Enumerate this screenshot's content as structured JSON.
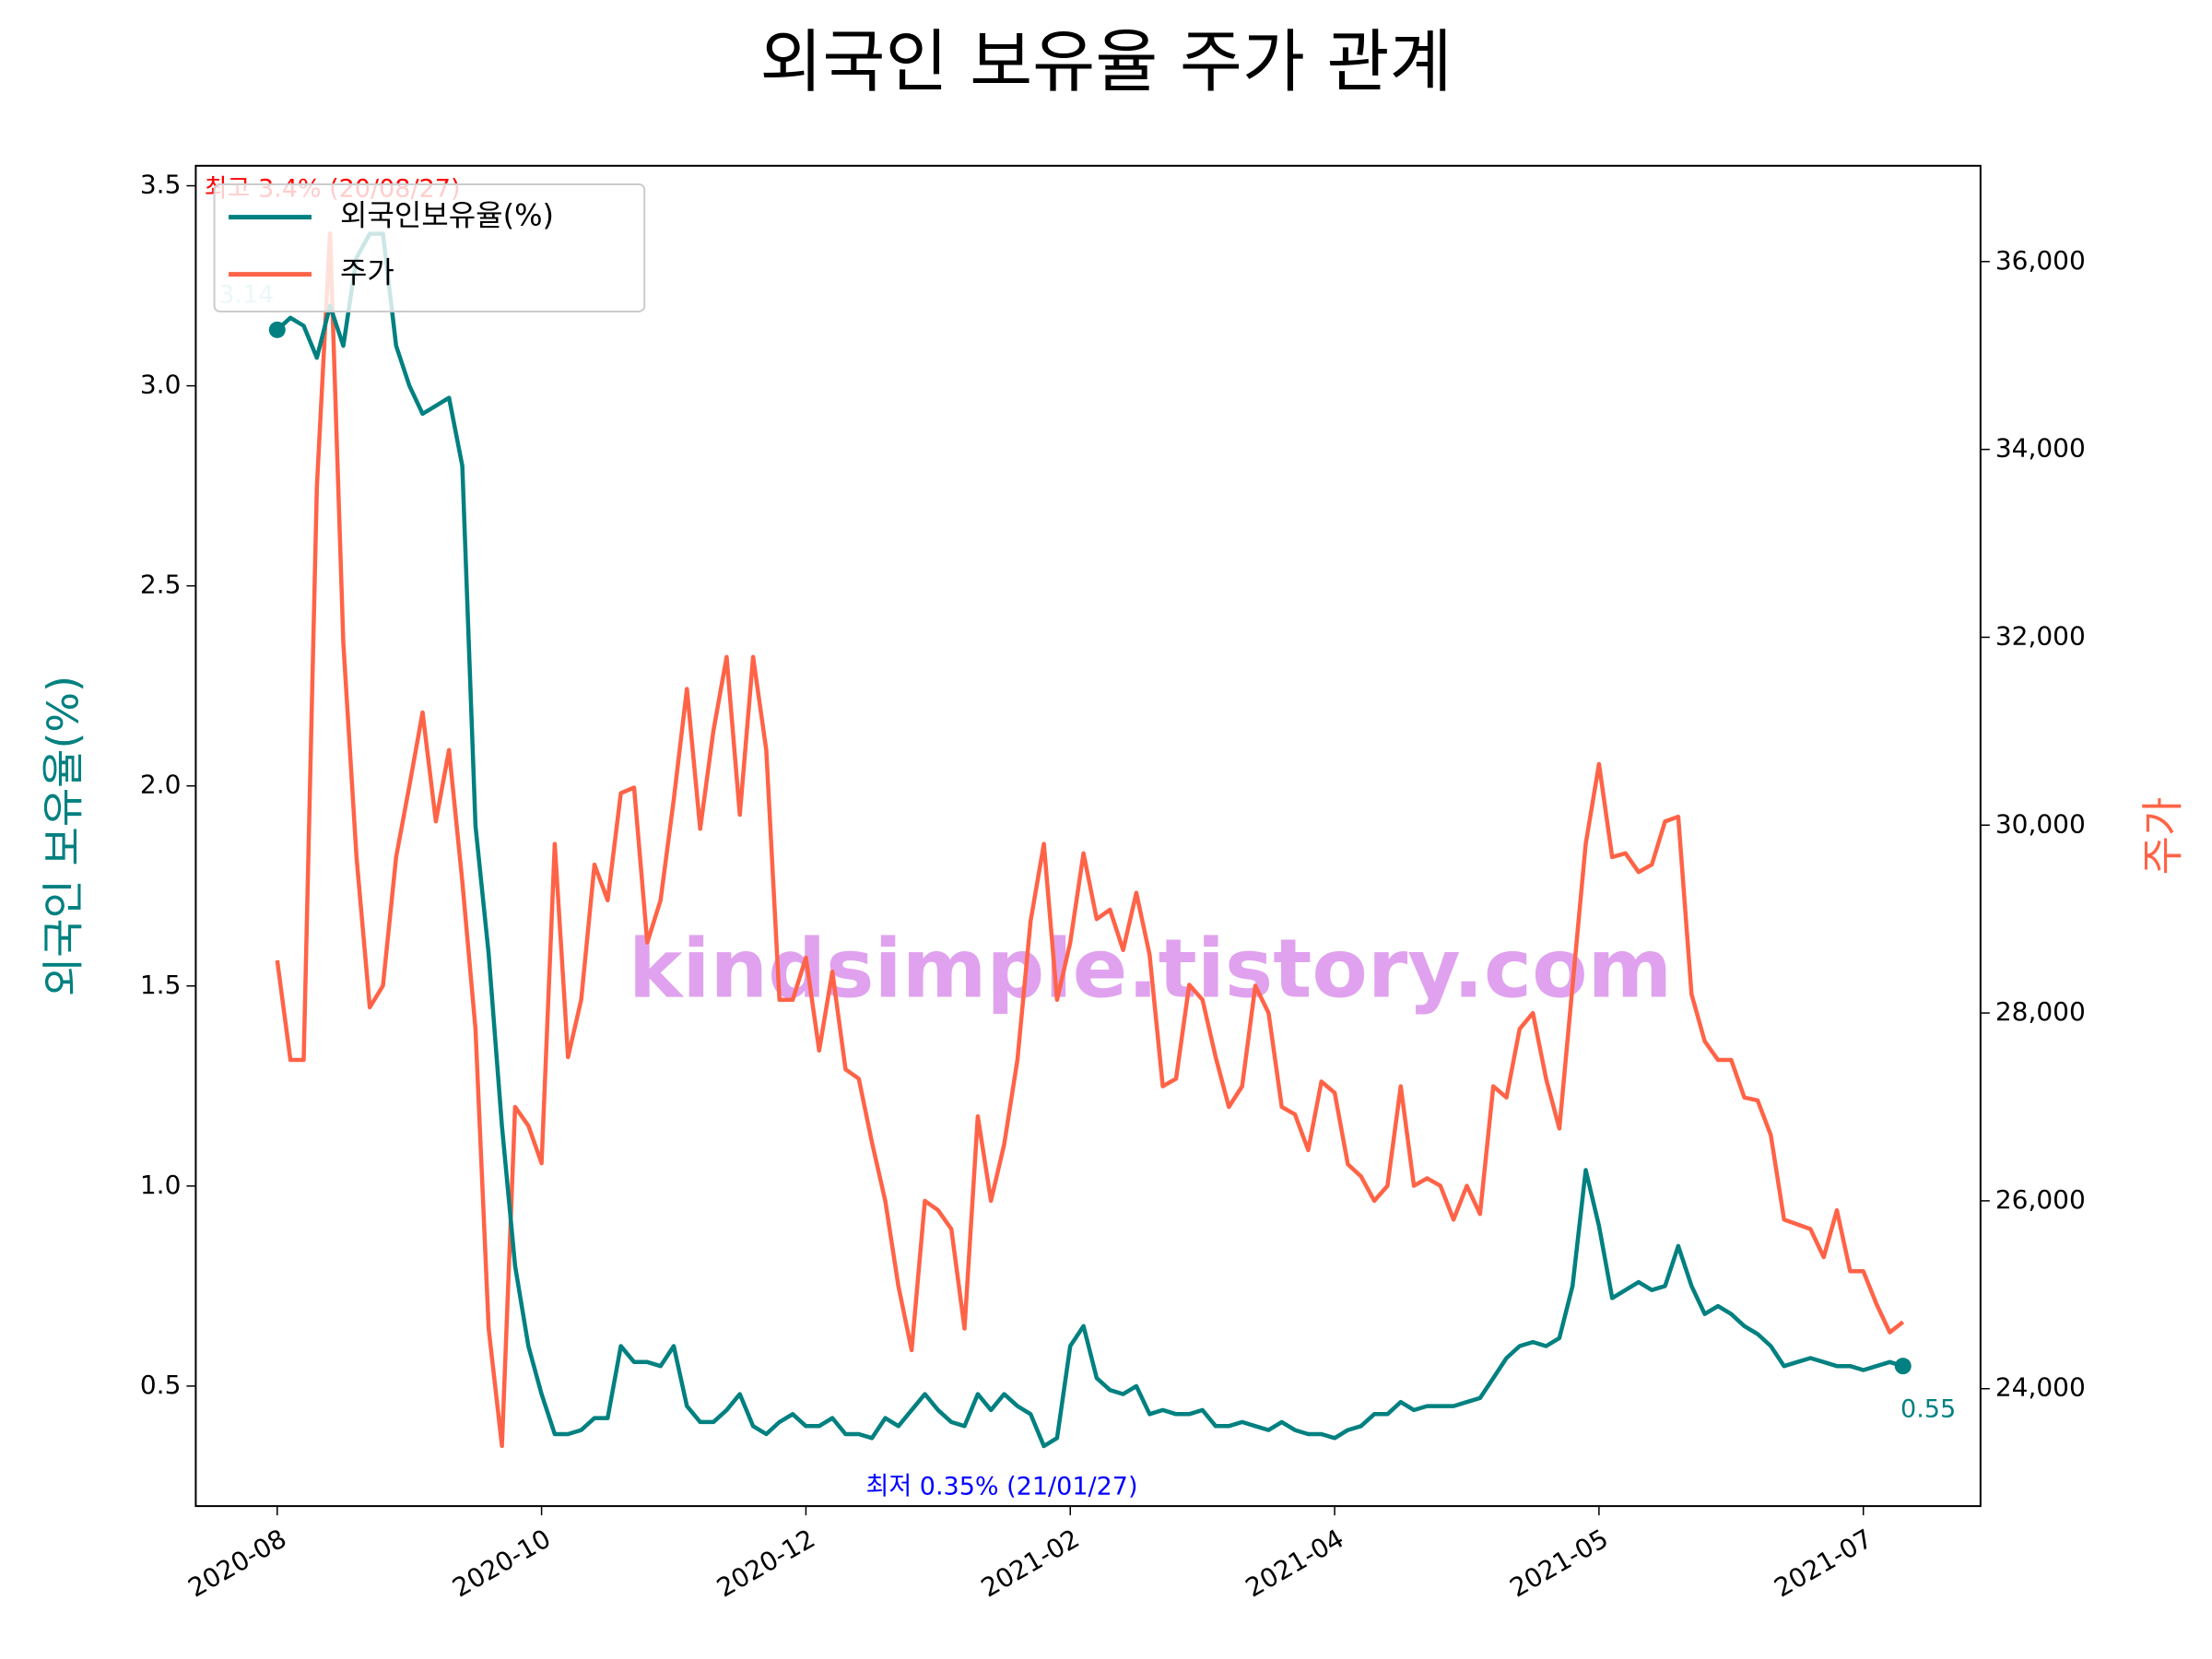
{
  "chart_data": {
    "type": "line",
    "title": "외국인 보유율 주가 관계",
    "ylabel": "외국인 보유율(%)",
    "y2label": "주가",
    "watermark": "kindsimple.tistory.com",
    "legend": "upper left",
    "categories": [
      "2020-08",
      null,
      null,
      null,
      null,
      null,
      null,
      null,
      null,
      null,
      null,
      null,
      null,
      null,
      null,
      null,
      null,
      null,
      null,
      null,
      "2020-10",
      null,
      null,
      null,
      null,
      null,
      null,
      null,
      null,
      null,
      null,
      null,
      null,
      null,
      null,
      null,
      null,
      null,
      null,
      null,
      "2020-12",
      null,
      null,
      null,
      null,
      null,
      null,
      null,
      null,
      null,
      null,
      null,
      null,
      null,
      null,
      null,
      null,
      null,
      null,
      null,
      "2021-02",
      null,
      null,
      null,
      null,
      null,
      null,
      null,
      null,
      null,
      null,
      null,
      null,
      null,
      null,
      null,
      null,
      null,
      null,
      null,
      "2021-04",
      null,
      null,
      null,
      null,
      null,
      null,
      null,
      null,
      null,
      null,
      null,
      null,
      null,
      null,
      null,
      null,
      null,
      null,
      null,
      "2021-05",
      null,
      null,
      null,
      null,
      null,
      null,
      null,
      null,
      null,
      null,
      null,
      null,
      null,
      null,
      null,
      null,
      null,
      null,
      null,
      "2021-07",
      null,
      null,
      null
    ],
    "ylim": [
      0.2,
      3.55
    ],
    "yticks": [
      0.5,
      {
        "value": 1,
        "label": "1.0"
      },
      1.5,
      {
        "value": 2,
        "label": "2.0"
      },
      2.5,
      {
        "value": 3,
        "label": "3.0"
      },
      3.5
    ],
    "y2lim": [
      22750,
      37020
    ],
    "y2ticks": [
      {
        "value": 24000,
        "label": "24,000"
      },
      {
        "value": 26000,
        "label": "26,000"
      },
      {
        "value": 28000,
        "label": "28,000"
      },
      {
        "value": 30000,
        "label": "30,000"
      },
      {
        "value": 32000,
        "label": "32,000"
      },
      {
        "value": 34000,
        "label": "34,000"
      },
      {
        "value": 36000,
        "label": "36,000"
      }
    ],
    "series": [
      {
        "name": "외국인보유율(%)",
        "color": "#008080",
        "values": [
          3.14,
          3.17,
          3.15,
          3.07,
          3.2,
          3.1,
          3.32,
          3.38,
          3.38,
          3.1,
          3.0,
          2.93,
          2.95,
          2.97,
          2.8,
          1.9,
          1.58,
          1.15,
          0.8,
          0.6,
          0.48,
          0.38,
          0.38,
          0.39,
          0.42,
          0.42,
          0.6,
          0.56,
          0.56,
          0.55,
          0.6,
          0.45,
          0.41,
          0.41,
          0.44,
          0.48,
          0.4,
          0.38,
          0.41,
          0.43,
          0.4,
          0.4,
          0.42,
          0.38,
          0.38,
          0.37,
          0.42,
          0.4,
          0.44,
          0.48,
          0.44,
          0.41,
          0.4,
          0.48,
          0.44,
          0.48,
          0.45,
          0.43,
          0.35,
          0.37,
          0.6,
          0.65,
          0.52,
          0.49,
          0.48,
          0.5,
          0.43,
          0.44,
          0.43,
          0.43,
          0.44,
          0.4,
          0.4,
          0.41,
          0.4,
          0.39,
          0.41,
          0.39,
          0.38,
          0.38,
          0.37,
          0.39,
          0.4,
          0.43,
          0.43,
          0.46,
          0.44,
          0.45,
          0.45,
          0.45,
          0.46,
          0.47,
          0.52,
          0.57,
          0.6,
          0.61,
          0.6,
          0.62,
          0.75,
          1.04,
          0.9,
          0.72,
          0.74,
          0.76,
          0.74,
          0.75,
          0.85,
          0.75,
          0.68,
          0.7,
          0.68,
          0.65,
          0.63,
          0.6,
          0.55,
          0.56,
          0.57,
          0.56,
          0.55,
          0.55,
          0.54,
          0.55,
          0.56,
          0.55
        ]
      },
      {
        "name": "주가",
        "color": "#ff6347",
        "axis": "y2",
        "values": [
          28560,
          27500,
          27500,
          33600,
          36300,
          31940,
          29660,
          28060,
          28290,
          29660,
          30420,
          31200,
          30040,
          30800,
          29400,
          27830,
          24640,
          23390,
          27000,
          26800,
          26400,
          29800,
          27530,
          28140,
          29580,
          29200,
          30340,
          30400,
          28750,
          29200,
          30270,
          31450,
          29960,
          31000,
          31790,
          30110,
          31790,
          30800,
          28140,
          28140,
          28590,
          27600,
          28440,
          27400,
          27300,
          26620,
          26000,
          25090,
          24410,
          26000,
          25900,
          25700,
          24640,
          26900,
          26000,
          26600,
          27500,
          28980,
          29800,
          28140,
          28750,
          29700,
          29000,
          29100,
          28670,
          29280,
          28620,
          27220,
          27300,
          28300,
          28140,
          27530,
          27000,
          27220,
          28290,
          28000,
          27000,
          26920,
          26540,
          27270,
          27150,
          26390,
          26260,
          26000,
          26160,
          27220,
          26160,
          26240,
          26160,
          25800,
          26160,
          25860,
          27220,
          27100,
          27830,
          28000,
          27300,
          26770,
          28290,
          29800,
          30650,
          29660,
          29700,
          29500,
          29580,
          30040,
          30090,
          28200,
          27700,
          27500,
          27500,
          27100,
          27070,
          26700,
          25800,
          25750,
          25700,
          25400,
          25900,
          25250,
          25250,
          24900,
          24600,
          24710
        ]
      }
    ],
    "annotations": [
      {
        "text": "최고 3.4% (20/08/27)",
        "color": "#ff0000"
      },
      {
        "text": "3.14",
        "color": "#a0d8d8"
      },
      {
        "text": "최저 0.35% (21/01/27)",
        "color": "#0000ff"
      },
      {
        "text": "0.55",
        "color": "#008080"
      }
    ]
  }
}
